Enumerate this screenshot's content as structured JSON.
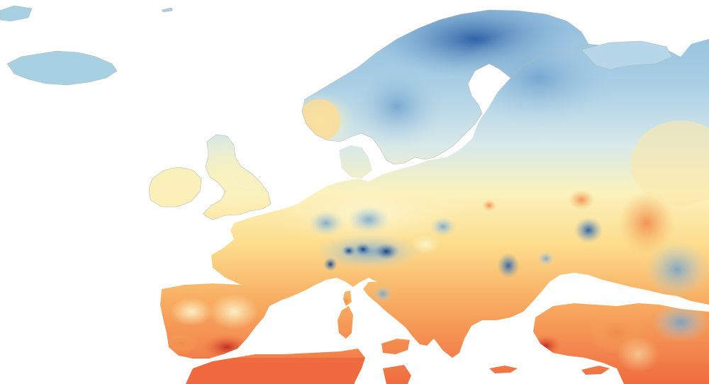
{
  "map": {
    "region": "Europe",
    "type": "choropleth-heatmap",
    "legend": null,
    "colors": {
      "sea": "#ffffff",
      "coast": "#b9b9b9",
      "cold_dark": "#1f4e91",
      "cold": "#3b72b4",
      "cool": "#6ea1cc",
      "cool_light": "#b6d6e9",
      "mild": "#e6f0e2",
      "neutral": "#fbf2bd",
      "warm_light": "#fde28f",
      "warm": "#f8b061",
      "hot": "#ef6b3f",
      "hottest": "#c12a20"
    },
    "land_areas": [
      "iceland",
      "scandinavia",
      "finland-russia",
      "british-isles",
      "ireland",
      "western-europe",
      "iberia",
      "italy",
      "balkans",
      "turkey",
      "north-africa",
      "corsica",
      "sardinia",
      "sicily",
      "crete",
      "cyprus"
    ]
  }
}
